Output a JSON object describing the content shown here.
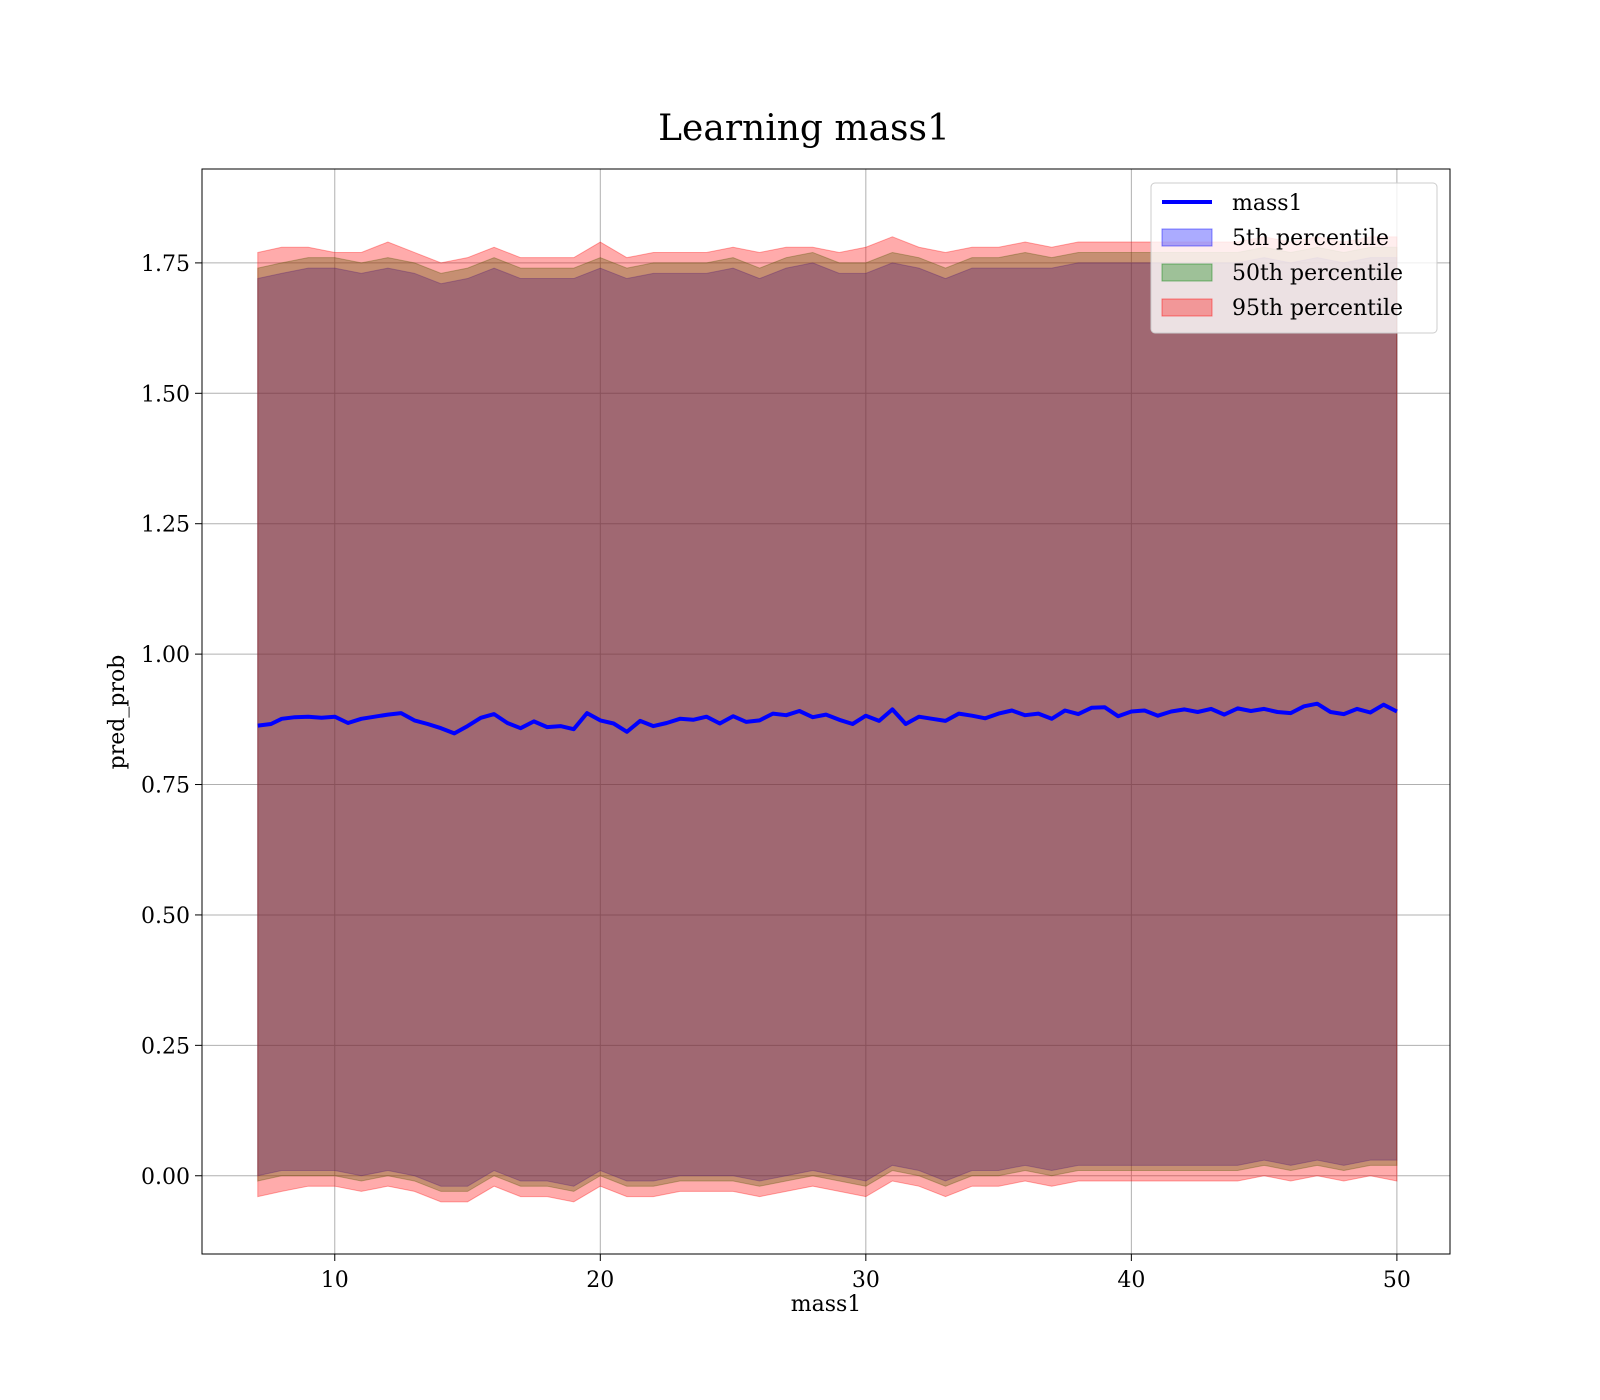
{
  "chart_data": {
    "type": "line",
    "title": "Learning mass1",
    "xlabel": "mass1",
    "ylabel": "pred_prob",
    "xlim": [
      5,
      52
    ],
    "ylim": [
      -0.15,
      1.93
    ],
    "xticks": [
      10,
      20,
      30,
      40,
      50
    ],
    "xtick_labels": [
      "10",
      "20",
      "30",
      "40",
      "50"
    ],
    "yticks": [
      0.0,
      0.25,
      0.5,
      0.75,
      1.0,
      1.25,
      1.5,
      1.75
    ],
    "ytick_labels": [
      "0.00",
      "0.25",
      "0.50",
      "0.75",
      "1.00",
      "1.25",
      "1.50",
      "1.75"
    ],
    "grid": true,
    "legend_position": "top-right",
    "series": [
      {
        "name": "mass1",
        "kind": "line",
        "color": "#0000ff",
        "x": [
          7.1,
          7.6,
          8.0,
          8.5,
          9.0,
          9.5,
          10.0,
          10.5,
          11.0,
          11.5,
          12.0,
          12.5,
          13.0,
          13.5,
          14.0,
          14.5,
          15.0,
          15.5,
          16.0,
          16.5,
          17.0,
          17.5,
          18.0,
          18.5,
          19.0,
          19.5,
          20.0,
          20.5,
          21.0,
          21.5,
          22.0,
          22.5,
          23.0,
          23.5,
          24.0,
          24.5,
          25.0,
          25.5,
          26.0,
          26.5,
          27.0,
          27.5,
          28.0,
          28.5,
          29.0,
          29.5,
          30.0,
          30.5,
          31.0,
          31.5,
          32.0,
          32.5,
          33.0,
          33.5,
          34.0,
          34.5,
          35.0,
          35.5,
          36.0,
          36.5,
          37.0,
          37.5,
          38.0,
          38.5,
          39.0,
          39.5,
          40.0,
          40.5,
          41.0,
          41.5,
          42.0,
          42.5,
          43.0,
          43.5,
          44.0,
          44.5,
          45.0,
          45.5,
          46.0,
          46.5,
          47.0,
          47.5,
          48.0,
          48.5,
          49.0,
          49.5,
          50.0
        ],
        "y": [
          0.863,
          0.866,
          0.876,
          0.879,
          0.88,
          0.878,
          0.88,
          0.868,
          0.876,
          0.88,
          0.884,
          0.887,
          0.873,
          0.866,
          0.858,
          0.848,
          0.862,
          0.878,
          0.885,
          0.868,
          0.858,
          0.871,
          0.86,
          0.862,
          0.856,
          0.887,
          0.873,
          0.867,
          0.851,
          0.872,
          0.862,
          0.868,
          0.876,
          0.874,
          0.88,
          0.867,
          0.881,
          0.87,
          0.873,
          0.886,
          0.883,
          0.891,
          0.879,
          0.884,
          0.874,
          0.866,
          0.882,
          0.872,
          0.894,
          0.866,
          0.88,
          0.876,
          0.872,
          0.886,
          0.882,
          0.877,
          0.886,
          0.892,
          0.883,
          0.886,
          0.876,
          0.892,
          0.885,
          0.897,
          0.898,
          0.881,
          0.89,
          0.892,
          0.882,
          0.89,
          0.894,
          0.889,
          0.895,
          0.884,
          0.896,
          0.891,
          0.895,
          0.889,
          0.887,
          0.9,
          0.905,
          0.889,
          0.885,
          0.895,
          0.888,
          0.903,
          0.89
        ]
      },
      {
        "name": "5th percentile",
        "kind": "band",
        "color": "#0000ff",
        "x": [
          7.1,
          8.0,
          9.0,
          10.0,
          11.0,
          12.0,
          13.0,
          14.0,
          15.0,
          16.0,
          17.0,
          18.0,
          19.0,
          20.0,
          21.0,
          22.0,
          23.0,
          24.0,
          25.0,
          26.0,
          27.0,
          28.0,
          29.0,
          30.0,
          31.0,
          32.0,
          33.0,
          34.0,
          35.0,
          36.0,
          37.0,
          38.0,
          39.0,
          40.0,
          41.0,
          42.0,
          43.0,
          44.0,
          45.0,
          46.0,
          47.0,
          48.0,
          49.0,
          50.0
        ],
        "lower": [
          0.0,
          0.01,
          0.01,
          0.01,
          0.0,
          0.01,
          0.0,
          -0.02,
          -0.02,
          0.01,
          -0.01,
          -0.01,
          -0.02,
          0.01,
          -0.01,
          -0.01,
          0.0,
          0.0,
          0.0,
          -0.01,
          0.0,
          0.01,
          0.0,
          -0.01,
          0.02,
          0.01,
          -0.01,
          0.01,
          0.01,
          0.02,
          0.01,
          0.02,
          0.02,
          0.02,
          0.02,
          0.02,
          0.02,
          0.02,
          0.03,
          0.02,
          0.03,
          0.02,
          0.03,
          0.03
        ],
        "upper": [
          1.72,
          1.73,
          1.74,
          1.74,
          1.73,
          1.74,
          1.73,
          1.71,
          1.72,
          1.74,
          1.72,
          1.72,
          1.72,
          1.74,
          1.72,
          1.73,
          1.73,
          1.73,
          1.74,
          1.72,
          1.74,
          1.75,
          1.73,
          1.73,
          1.75,
          1.74,
          1.72,
          1.74,
          1.74,
          1.74,
          1.74,
          1.75,
          1.75,
          1.75,
          1.75,
          1.75,
          1.75,
          1.75,
          1.76,
          1.75,
          1.76,
          1.75,
          1.76,
          1.76
        ]
      },
      {
        "name": "50th percentile",
        "kind": "band",
        "color": "#008000",
        "x": [
          7.1,
          8.0,
          9.0,
          10.0,
          11.0,
          12.0,
          13.0,
          14.0,
          15.0,
          16.0,
          17.0,
          18.0,
          19.0,
          20.0,
          21.0,
          22.0,
          23.0,
          24.0,
          25.0,
          26.0,
          27.0,
          28.0,
          29.0,
          30.0,
          31.0,
          32.0,
          33.0,
          34.0,
          35.0,
          36.0,
          37.0,
          38.0,
          39.0,
          40.0,
          41.0,
          42.0,
          43.0,
          44.0,
          45.0,
          46.0,
          47.0,
          48.0,
          49.0,
          50.0
        ],
        "lower": [
          -0.01,
          0.0,
          0.0,
          0.0,
          -0.01,
          0.0,
          -0.01,
          -0.03,
          -0.03,
          0.0,
          -0.02,
          -0.02,
          -0.03,
          0.0,
          -0.02,
          -0.02,
          -0.01,
          -0.01,
          -0.01,
          -0.02,
          -0.01,
          0.0,
          -0.01,
          -0.02,
          0.01,
          0.0,
          -0.02,
          0.0,
          0.0,
          0.01,
          0.0,
          0.01,
          0.01,
          0.01,
          0.01,
          0.01,
          0.01,
          0.01,
          0.02,
          0.01,
          0.02,
          0.01,
          0.02,
          0.02
        ],
        "upper": [
          1.74,
          1.75,
          1.76,
          1.76,
          1.75,
          1.76,
          1.75,
          1.73,
          1.74,
          1.76,
          1.74,
          1.74,
          1.74,
          1.76,
          1.74,
          1.75,
          1.75,
          1.75,
          1.76,
          1.74,
          1.76,
          1.77,
          1.75,
          1.75,
          1.77,
          1.76,
          1.74,
          1.76,
          1.76,
          1.77,
          1.76,
          1.77,
          1.77,
          1.77,
          1.77,
          1.77,
          1.77,
          1.77,
          1.78,
          1.77,
          1.78,
          1.77,
          1.78,
          1.78
        ]
      },
      {
        "name": "95th percentile",
        "kind": "band",
        "color": "#ff0000",
        "x": [
          7.1,
          8.0,
          9.0,
          10.0,
          11.0,
          12.0,
          13.0,
          14.0,
          15.0,
          16.0,
          17.0,
          18.0,
          19.0,
          20.0,
          21.0,
          22.0,
          23.0,
          24.0,
          25.0,
          26.0,
          27.0,
          28.0,
          29.0,
          30.0,
          31.0,
          32.0,
          33.0,
          34.0,
          35.0,
          36.0,
          37.0,
          38.0,
          39.0,
          40.0,
          41.0,
          42.0,
          43.0,
          44.0,
          45.0,
          46.0,
          47.0,
          48.0,
          49.0,
          50.0
        ],
        "lower": [
          -0.04,
          -0.03,
          -0.02,
          -0.02,
          -0.03,
          -0.02,
          -0.03,
          -0.05,
          -0.05,
          -0.02,
          -0.04,
          -0.04,
          -0.05,
          -0.02,
          -0.04,
          -0.04,
          -0.03,
          -0.03,
          -0.03,
          -0.04,
          -0.03,
          -0.02,
          -0.03,
          -0.04,
          -0.01,
          -0.02,
          -0.04,
          -0.02,
          -0.02,
          -0.01,
          -0.02,
          -0.01,
          -0.01,
          -0.01,
          -0.01,
          -0.01,
          -0.01,
          -0.01,
          0.0,
          -0.01,
          0.0,
          -0.01,
          0.0,
          -0.01
        ],
        "upper": [
          1.77,
          1.78,
          1.78,
          1.77,
          1.77,
          1.79,
          1.77,
          1.75,
          1.76,
          1.78,
          1.76,
          1.76,
          1.76,
          1.79,
          1.76,
          1.77,
          1.77,
          1.77,
          1.78,
          1.77,
          1.78,
          1.78,
          1.77,
          1.78,
          1.8,
          1.78,
          1.77,
          1.78,
          1.78,
          1.79,
          1.78,
          1.79,
          1.79,
          1.79,
          1.79,
          1.79,
          1.79,
          1.79,
          1.8,
          1.79,
          1.8,
          1.79,
          1.8,
          1.8
        ]
      }
    ]
  }
}
